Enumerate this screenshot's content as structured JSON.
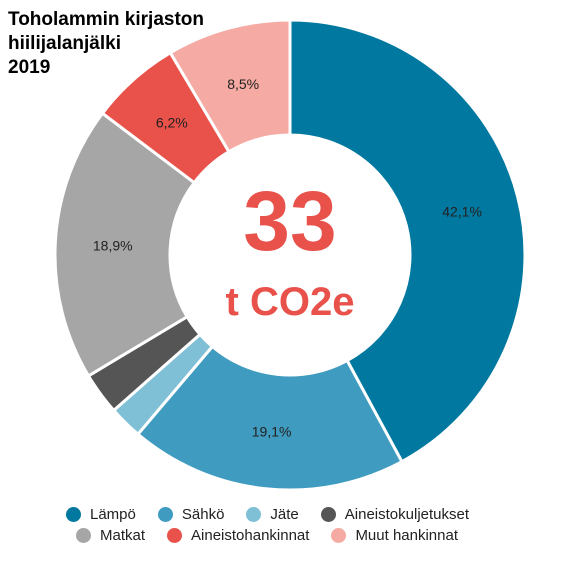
{
  "chart_data": {
    "type": "pie",
    "title": "Toholammin kirjaston\nhiilijalanjälki\n2019",
    "center_value": "33",
    "center_unit": "t CO2e",
    "categories": [
      "Lämpö",
      "Sähkö",
      "Jäte",
      "Aineistokuljetukset",
      "Matkat",
      "Aineistohankinnat",
      "Muut hankinnat"
    ],
    "values": [
      42.1,
      19.1,
      2.3,
      2.9,
      18.9,
      6.2,
      8.5
    ],
    "slice_labels": [
      "42,1%",
      "19,1%",
      "",
      "",
      "18,9%",
      "6,2%",
      "8,5%"
    ],
    "colors": [
      "#00789f",
      "#3f9bbf",
      "#80c0d6",
      "#555555",
      "#a6a6a6",
      "#e8524a",
      "#f5aaa3"
    ],
    "legend": {
      "placement": "bottom",
      "rows": [
        [
          "Lämpö",
          "Sähkö",
          "Jäte",
          "Aineistokuljetukset"
        ],
        [
          "Matkat",
          "Aineistohankinnat",
          "Muut hankinnat"
        ]
      ]
    }
  }
}
